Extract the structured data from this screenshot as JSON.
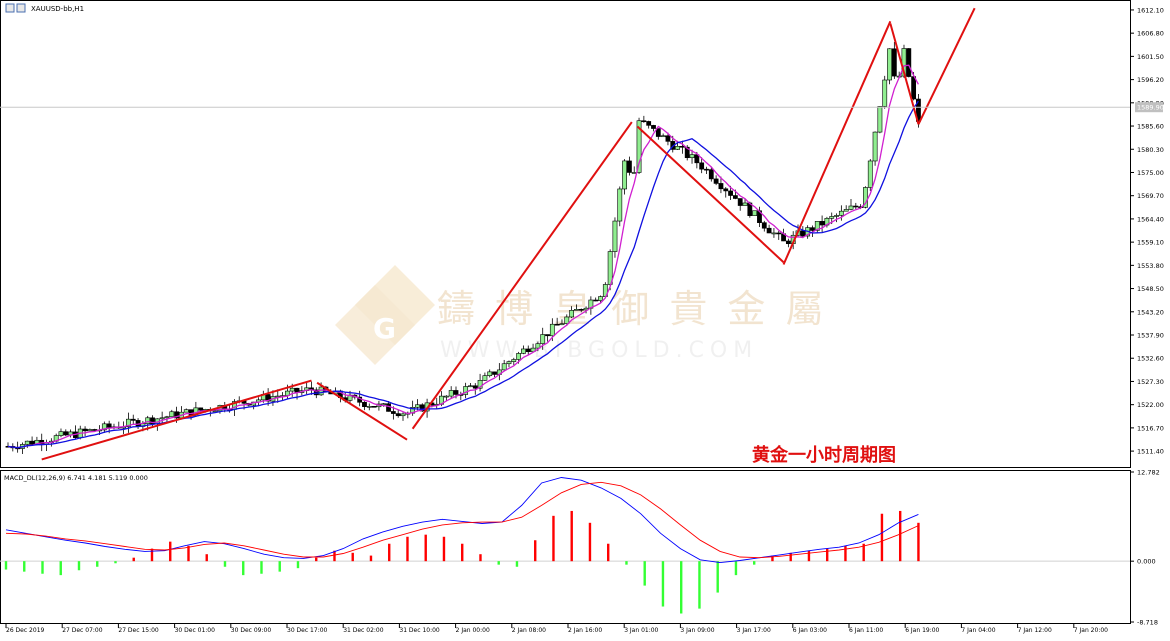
{
  "window": {
    "symbol_label": "XAUUSD-bb,H1"
  },
  "watermark": {
    "cn_text": "鑄 博 皇 御 貴 金 屬",
    "url_text": "WWW.BIBGOLD.COM",
    "logo_letter": "G"
  },
  "annotation": {
    "title_cn": "黄金一小时周期图"
  },
  "colors": {
    "up_candle": "#90ee90",
    "down_candle": "#000000",
    "ma_fast": "#d020d0",
    "ma_slow": "#1010e0",
    "trend_lines": "#e01010",
    "macd_pos": "#ff0000",
    "macd_neg": "#33ff33",
    "macd_line_blue": "#0000ff",
    "macd_line_red": "#ff0000",
    "crosshair": "#c8c8c8"
  },
  "chart_data": [
    {
      "type": "candlestick",
      "symbol": "XAUUSD-bb",
      "timeframe": "H1",
      "y_ticks": [
        "1612.10",
        "1606.80",
        "1601.50",
        "1596.20",
        "1590.90",
        "1585.60",
        "1580.30",
        "1575.00",
        "1569.70",
        "1564.40",
        "1559.10",
        "1553.80",
        "1548.50",
        "1543.20",
        "1537.90",
        "1532.60",
        "1527.30",
        "1522.00",
        "1516.70",
        "1511.40"
      ],
      "ylim": [
        1508.0,
        1613.0
      ],
      "current_price_label": "1589.90",
      "current_price": 1589.9,
      "x_tick_labels": [
        "26 Dec 2019",
        "27 Dec 07:00",
        "27 Dec 15:00",
        "30 Dec 01:00",
        "30 Dec 09:00",
        "30 Dec 17:00",
        "31 Dec 02:00",
        "31 Dec 10:00",
        "2 Jan 00:00",
        "2 Jan 08:00",
        "2 Jan 16:00",
        "3 Jan 01:00",
        "3 Jan 09:00",
        "3 Jan 17:00",
        "6 Jan 03:00",
        "6 Jan 11:00",
        "6 Jan 19:00",
        "7 Jan 04:00",
        "7 Jan 12:00",
        "7 Jan 20:00"
      ],
      "key_prices": [
        {
          "point": "start",
          "value": 1512.5
        },
        {
          "point": "31 Dec 02:00 area",
          "value": 1525.5
        },
        {
          "point": "31 Dec 10:00 area",
          "value": 1520.0
        },
        {
          "point": "2 Jan 16:00 area",
          "value": 1527.0
        },
        {
          "point": "3 Jan 09:00 area",
          "value": 1548.0
        },
        {
          "point": "3 Jan 17:00 spike high",
          "value": 1588.0
        },
        {
          "point": "6 Jan 03:00 area",
          "value": 1577.0
        },
        {
          "point": "6 Jan 19:00 area low",
          "value": 1559.0
        },
        {
          "point": "7 Jan 12:00 area",
          "value": 1568.0
        },
        {
          "point": "7 Jan 20:00 spike high",
          "value": 1611.5
        },
        {
          "point": "last close",
          "value": 1586.0
        }
      ],
      "trend_lines": "red zig-zag channel lines drawn over the price",
      "moving_averages": [
        "fast MA (magenta)",
        "slow MA (blue)"
      ]
    },
    {
      "type": "bar",
      "indicator_label": "MACD_DL(12,26,9) 6.741 4.181 5.119 0.000",
      "y_ticks": [
        "12.782",
        "0.000",
        "-8.718"
      ],
      "ylim": [
        -8.718,
        12.782
      ],
      "series": [
        {
          "name": "histogram",
          "values": [
            -1.2,
            -1.5,
            -1.8,
            -2.0,
            -1.3,
            -0.8,
            -0.3,
            0.5,
            1.8,
            2.8,
            2.2,
            1.0,
            -0.8,
            -2.0,
            -1.8,
            -1.5,
            -1.0,
            0.5,
            1.5,
            1.2,
            0.8,
            2.5,
            3.5,
            3.8,
            3.5,
            2.5,
            1.0,
            -0.5,
            -0.8,
            3.0,
            6.5,
            7.2,
            5.5,
            2.5,
            -0.5,
            -3.5,
            -6.5,
            -7.5,
            -6.8,
            -4.5,
            -2.0,
            -0.5,
            0.8,
            1.2,
            1.5,
            1.8,
            2.2,
            2.5,
            6.8,
            7.2,
            5.5
          ]
        },
        {
          "name": "macd-line",
          "values": [
            4.5,
            4.0,
            3.5,
            3.0,
            2.6,
            2.1,
            1.7,
            1.4,
            1.5,
            2.2,
            2.8,
            2.5,
            1.8,
            1.0,
            0.5,
            0.4,
            0.8,
            1.8,
            3.2,
            4.2,
            5.0,
            5.6,
            6.0,
            5.7,
            5.4,
            5.6,
            8.0,
            11.2,
            12.0,
            11.6,
            10.5,
            9.0,
            6.8,
            4.0,
            1.8,
            0.2,
            -0.2,
            0.1,
            0.5,
            0.9,
            1.3,
            1.7,
            2.0,
            2.6,
            3.8,
            5.5,
            6.7
          ]
        },
        {
          "name": "signal-line",
          "values": [
            4.0,
            3.9,
            3.6,
            3.2,
            2.9,
            2.5,
            2.1,
            1.7,
            1.6,
            1.9,
            2.4,
            2.6,
            2.2,
            1.6,
            1.0,
            0.6,
            0.6,
            1.1,
            2.0,
            3.0,
            3.8,
            4.6,
            5.2,
            5.5,
            5.6,
            5.6,
            6.3,
            8.0,
            9.8,
            11.0,
            11.3,
            10.8,
            9.5,
            7.5,
            5.2,
            3.0,
            1.4,
            0.6,
            0.5,
            0.7,
            1.0,
            1.3,
            1.6,
            2.0,
            2.7,
            3.8,
            5.1
          ]
        }
      ]
    }
  ]
}
